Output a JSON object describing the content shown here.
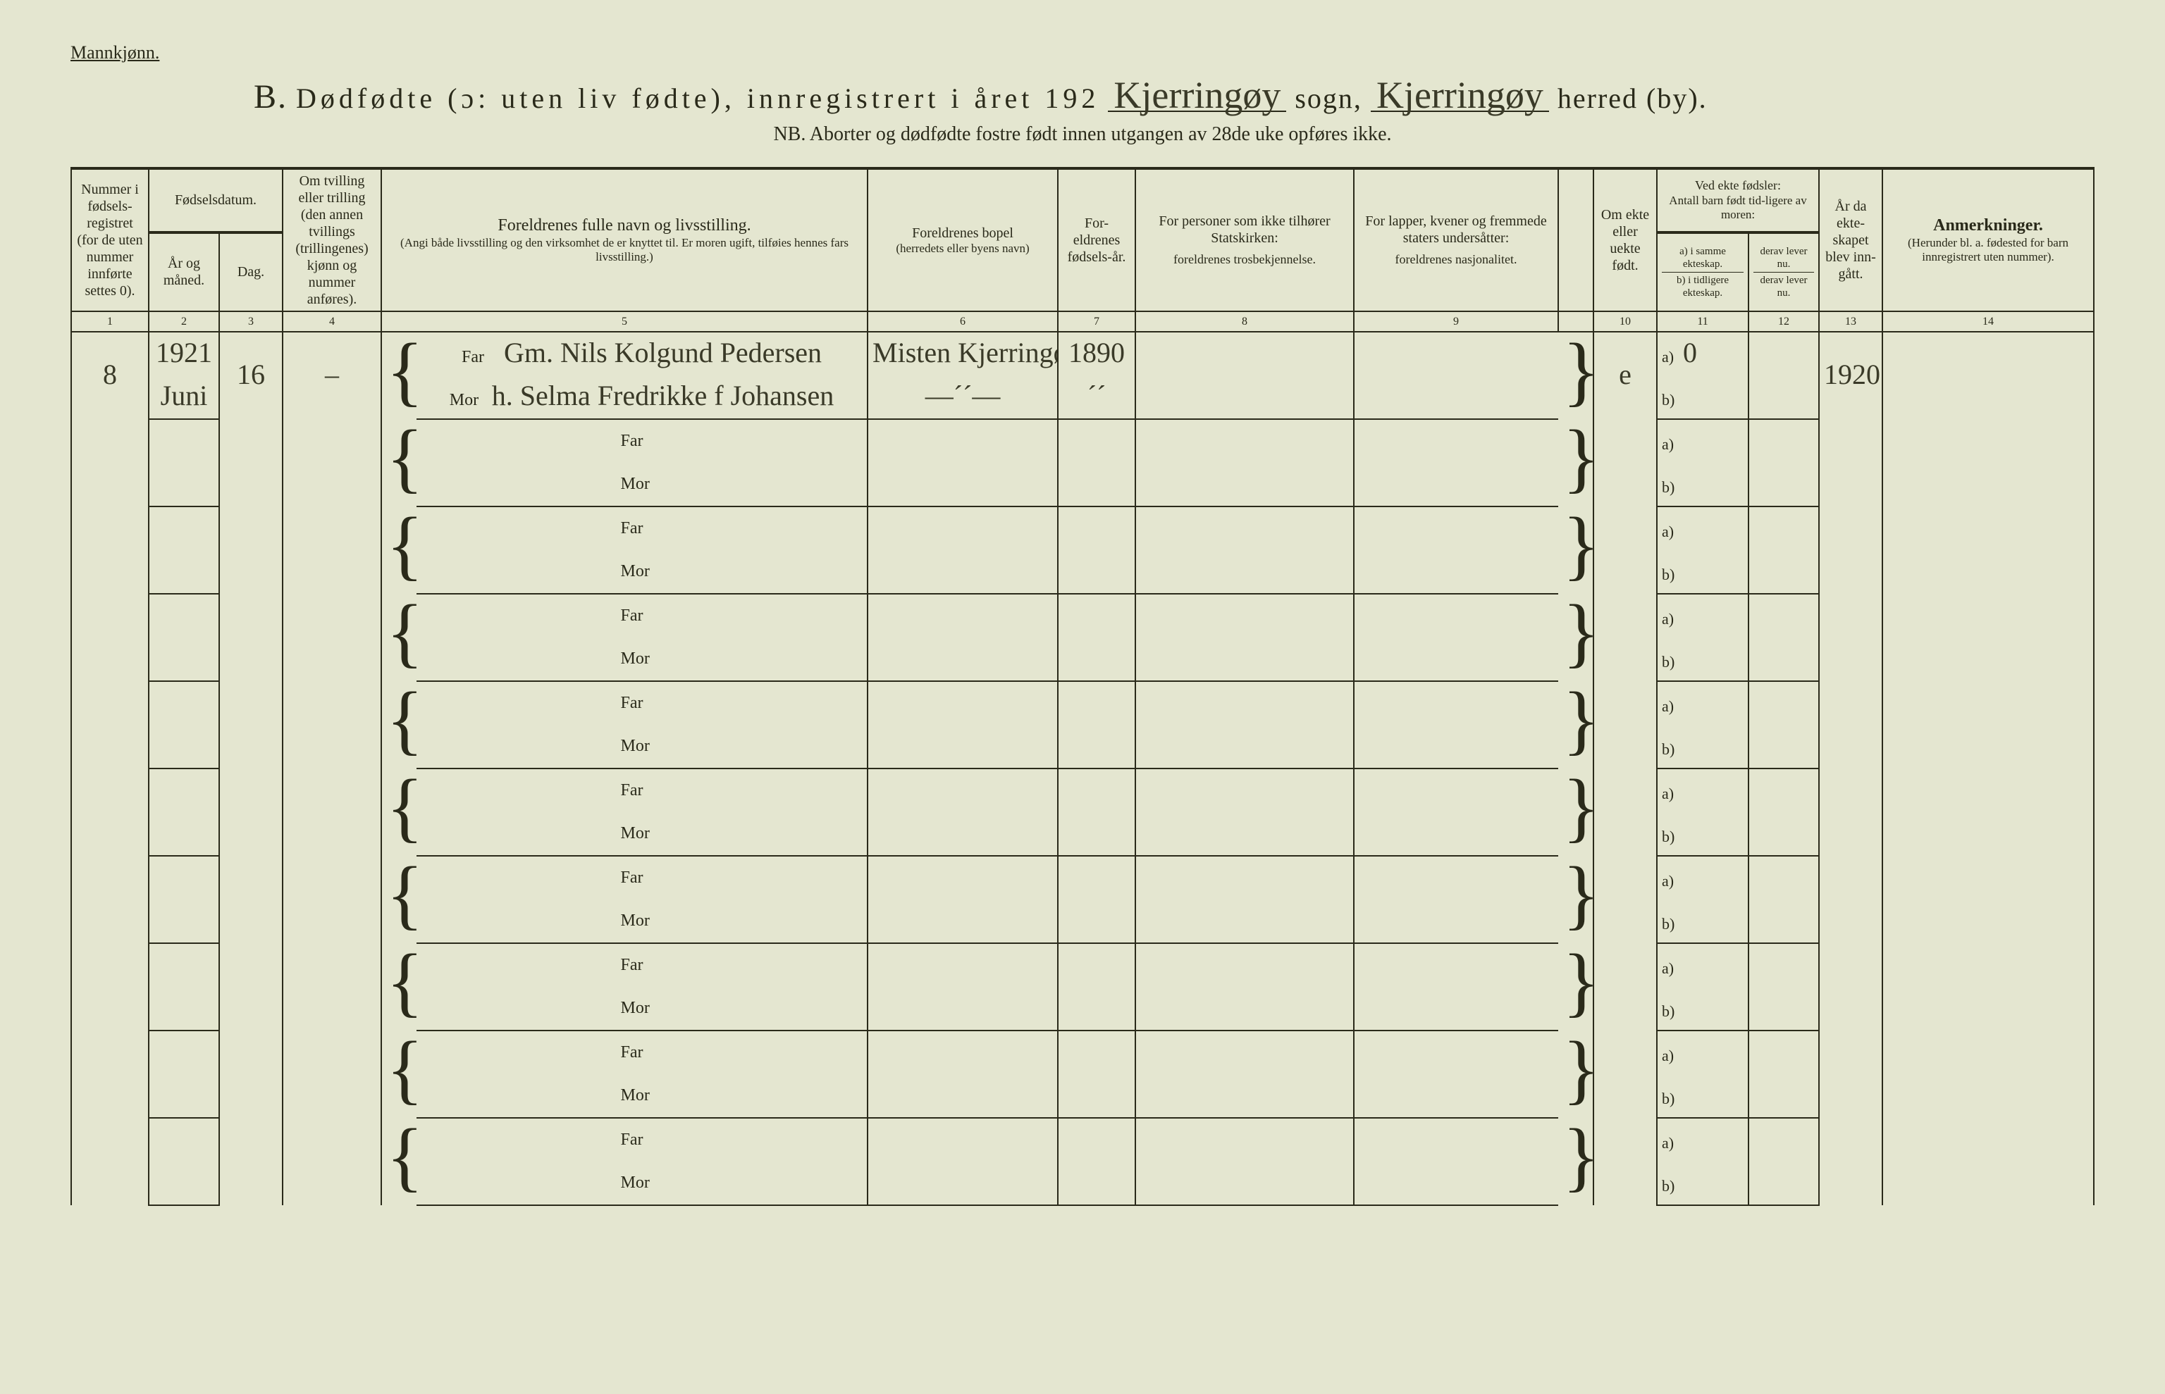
{
  "page_bg": "#e4e6d0",
  "text_color": "#2a2a1a",
  "script_color": "#3a3a28",
  "border_color": "#2a2a1a",
  "topleft": "Mannkjønn.",
  "title": {
    "B": "B.",
    "main": "Dødfødte (ɔ: uten liv fødte), innregistrert i året 192",
    "sogn_script": "Kjerringøy",
    "sogn_word": "sogn,",
    "herred_script": "Kjerringøy",
    "herred_word": "herred (by)."
  },
  "subtitle": "NB.  Aborter og dødfødte fostre født innen utgangen av 28de uke opføres ikke.",
  "columns": {
    "1": "Nummer i fødsels-registret (for de uten nummer innførte settes 0).",
    "2_top": "Fødselsdatum.",
    "2": "År og måned.",
    "3": "Dag.",
    "4": "Om tvilling eller trilling (den annen tvillings (trillingenes) kjønn og nummer anføres).",
    "5_top": "Foreldrenes fulle navn og livsstilling.",
    "5_sub": "(Angi både livsstilling og den virksomhet de er knyttet til. Er moren ugift, tilføies hennes fars livsstilling.)",
    "6_top": "Foreldrenes bopel",
    "6_sub": "(herredets eller byens navn)",
    "7": "For-eldrenes fødsels-år.",
    "8_top": "For personer som ikke tilhører Statskirken:",
    "8_sub": "foreldrenes trosbekjennelse.",
    "9_top": "For lapper, kvener og fremmede staters undersåtter:",
    "9_sub": "foreldrenes nasjonalitet.",
    "10": "Om ekte eller uekte født.",
    "11_top": "Ved ekte fødsler:",
    "11_mid": "Antall barn født tid-ligere av moren:",
    "11_a": "a) i samme ekteskap.",
    "11_b": "b) i tidligere ekteskap.",
    "12_a": "derav lever nu.",
    "12_b": "derav lever nu.",
    "13": "År da ekte-skapet blev inn-gått.",
    "14_top": "Anmerkninger.",
    "14_sub": "(Herunder bl. a. fødested for barn innregistrert uten nummer)."
  },
  "colnums": [
    "1",
    "2",
    "3",
    "4",
    "5",
    "6",
    "7",
    "8",
    "9",
    "10",
    "11",
    "12",
    "13",
    "14"
  ],
  "parent_labels": {
    "far": "Far",
    "mor": "Mor"
  },
  "c11_labels": {
    "a": "a)",
    "b": "b)"
  },
  "row_count": 10,
  "entries": [
    {
      "num": "8",
      "year": "1921",
      "month": "Juni",
      "day": "16",
      "twin": "–",
      "far": "Gm. Nils Kolgund Pedersen",
      "mor": "h. Selma Fredrikke f Johansen",
      "bopel_far": "Misten Kjerringøy",
      "bopel_mor": "—´´—",
      "faar_far": "1890",
      "faar_mor": "´´",
      "ekte": "e",
      "c11a": "0",
      "c11b": "",
      "c13": "1920"
    }
  ]
}
